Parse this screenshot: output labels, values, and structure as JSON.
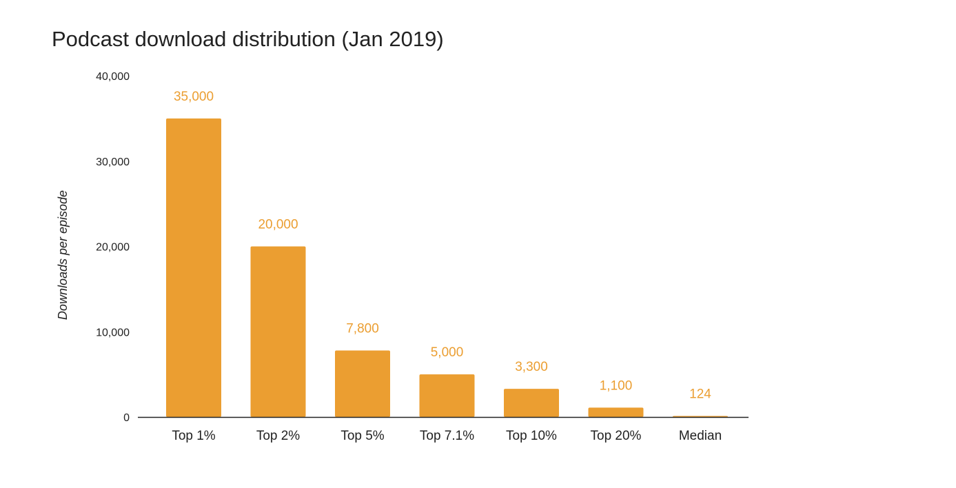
{
  "chart_data": {
    "type": "bar",
    "title": "Podcast download distribution (Jan 2019)",
    "xlabel": "",
    "ylabel": "Downloads per episode",
    "categories": [
      "Top 1%",
      "Top 2%",
      "Top 5%",
      "Top 7.1%",
      "Top 10%",
      "Top 20%",
      "Median"
    ],
    "values": [
      35000,
      20000,
      7800,
      5000,
      3300,
      1100,
      124
    ],
    "data_labels": [
      "35,000",
      "20,000",
      "7,800",
      "5,000",
      "3,300",
      "1,100",
      "124"
    ],
    "yticks": [
      0,
      10000,
      20000,
      30000,
      40000
    ],
    "ytick_labels": [
      "0",
      "10,000",
      "20,000",
      "30,000",
      "40,000"
    ],
    "ylim": [
      0,
      40000
    ],
    "grid": false,
    "legend": "none",
    "colors": {
      "bar": "#EB9E31",
      "label": "#EB9E31",
      "axis": "#222222",
      "text": "#222222"
    }
  }
}
